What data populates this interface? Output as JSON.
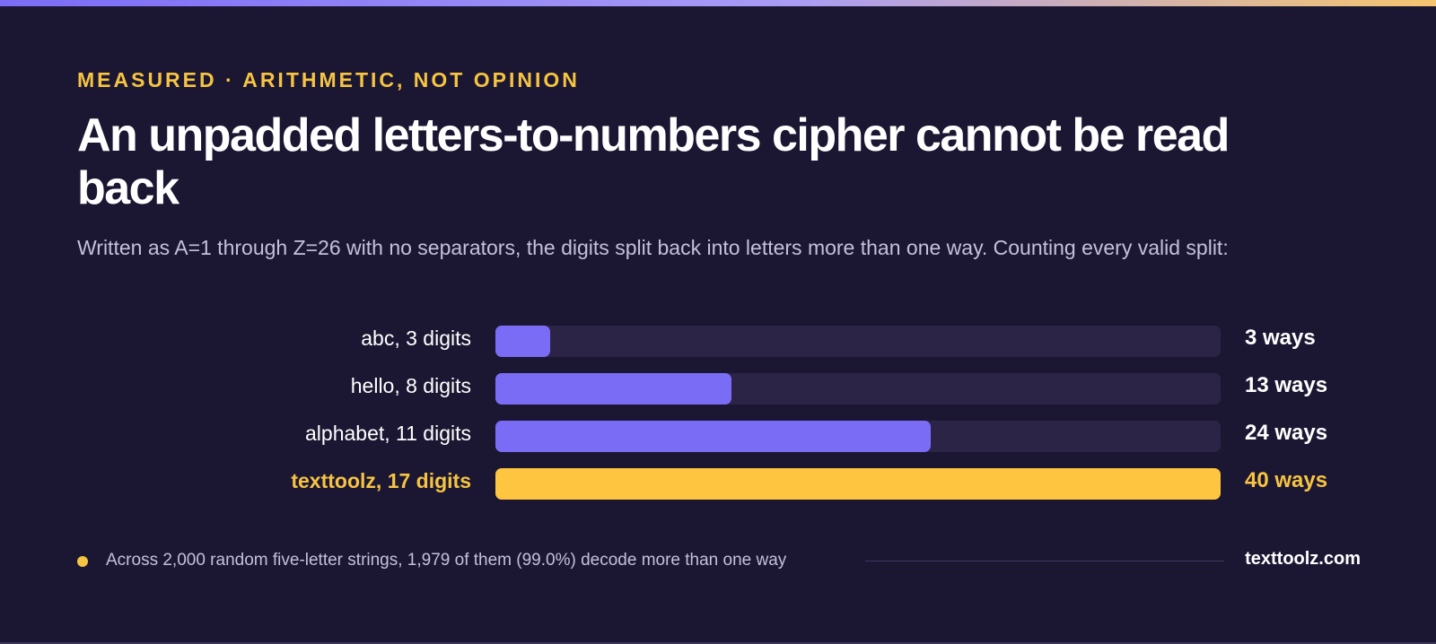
{
  "colors": {
    "background": "#1b1733",
    "accent_purple": "#7b6cf6",
    "accent_yellow": "#f7c441",
    "track": "#2b2446",
    "muted_text": "#c4c0dc"
  },
  "header": {
    "eyebrow": "MEASURED · ARITHMETIC, NOT OPINION",
    "title": "An unpadded letters-to-numbers cipher cannot be read back",
    "subtitle": "Written as A=1 through Z=26 with no separators, the digits split back into letters more than one way. Counting every valid split:"
  },
  "chart_data": {
    "type": "bar",
    "orientation": "horizontal",
    "categories": [
      "abc, 3 digits",
      "hello, 8 digits",
      "alphabet, 11 digits",
      "texttoolz, 17 digits"
    ],
    "values": [
      3,
      13,
      24,
      40
    ],
    "value_labels": [
      "3 ways",
      "13 ways",
      "24 ways",
      "40 ways"
    ],
    "highlighted_index": 3,
    "xlim": [
      0,
      40
    ],
    "grid": false
  },
  "footer": {
    "note": "Across 2,000 random five-letter strings, 1,979 of them (99.0%) decode more than one way",
    "brand": "texttoolz.com"
  }
}
